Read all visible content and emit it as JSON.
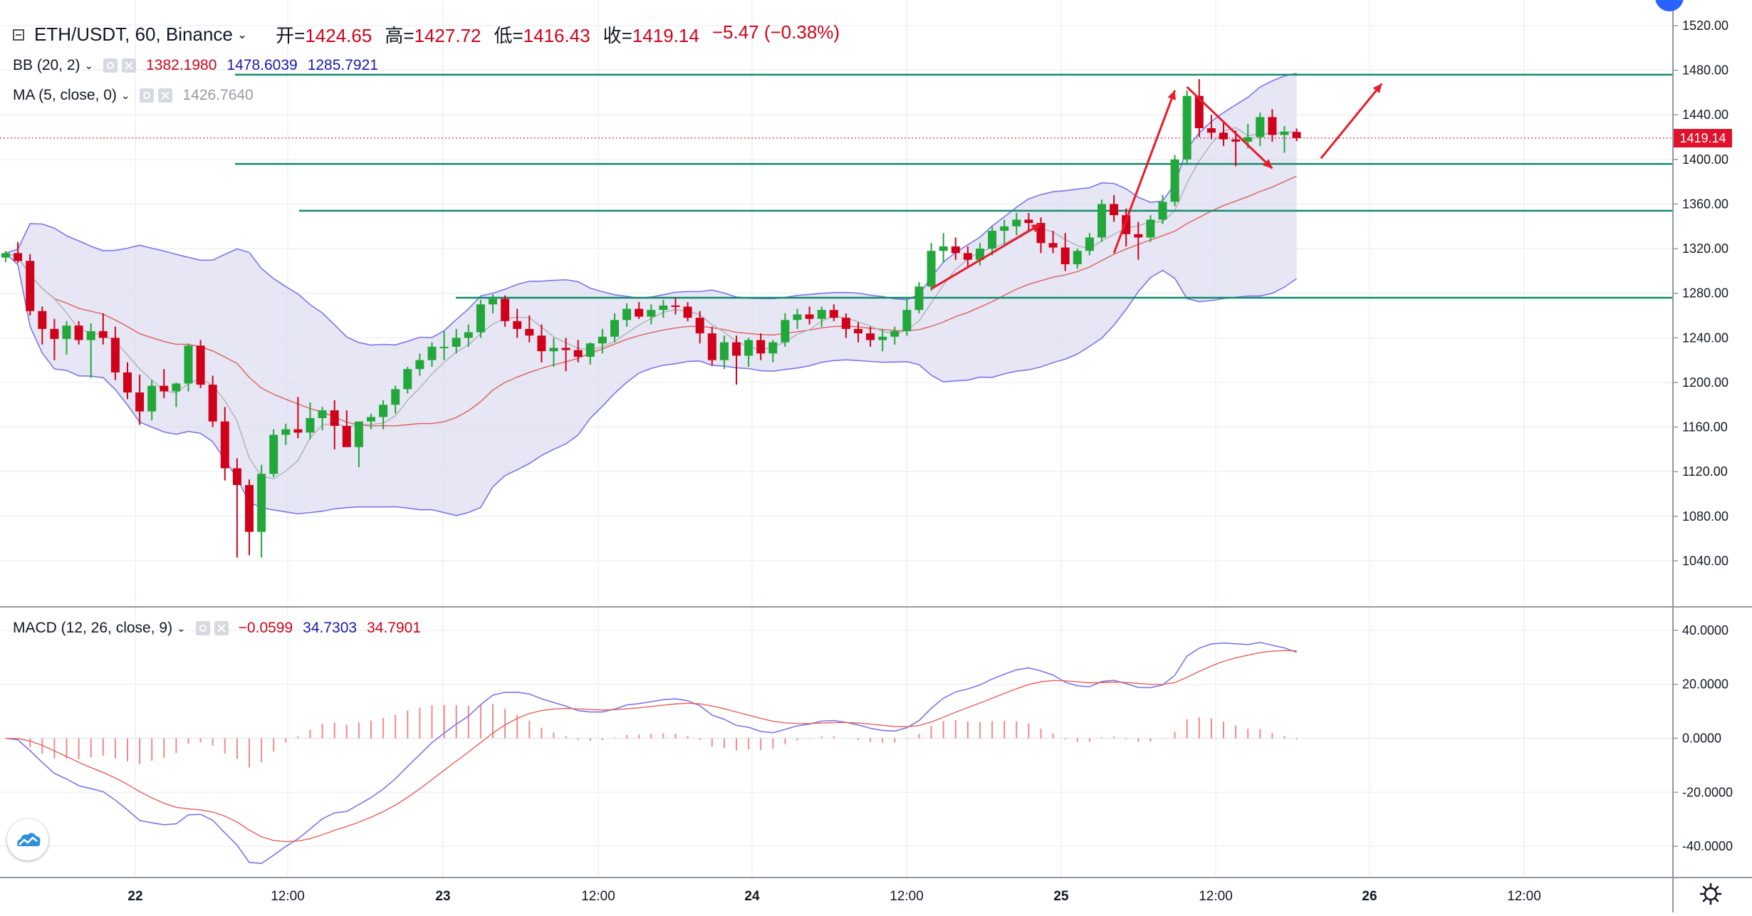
{
  "header": {
    "symbol": "ETH/USDT, 60, Binance",
    "ohlc": [
      {
        "label": "开=",
        "value": "1424.65"
      },
      {
        "label": "高=",
        "value": "1427.72"
      },
      {
        "label": "低=",
        "value": "1416.43"
      },
      {
        "label": "收=",
        "value": "1419.14"
      }
    ],
    "change": "−5.47 (−0.38%)"
  },
  "indicators": {
    "bb": {
      "name": "BB (20, 2)",
      "basis": "1382.1980",
      "upper": "1478.6039",
      "lower": "1285.7921"
    },
    "ma": {
      "name": "MA (5, close, 0)",
      "value": "1426.7640"
    },
    "macd": {
      "name": "MACD (12, 26, close, 9)",
      "hist": "−0.0599",
      "macd": "34.7303",
      "signal": "34.7901"
    }
  },
  "last_price_badge": "1419.14",
  "colors": {
    "up": "#22a83a",
    "down": "#d0021b",
    "bb_band": "#7b76e8",
    "bb_fill": "#dcdcf0",
    "ma": "#b0b0b8",
    "basis": "#e0605a",
    "hline": "#128a6c",
    "arrow": "#e81c28"
  },
  "chart_data": {
    "type": "candlestick",
    "price_axis": {
      "min": 1000,
      "max": 1520,
      "ticks": [
        "1040.00",
        "1080.00",
        "1120.00",
        "1160.00",
        "1200.00",
        "1240.00",
        "1280.00",
        "1320.00",
        "1360.00",
        "1400.00",
        "1440.00",
        "1480.00",
        "1520.00"
      ]
    },
    "macd_axis": {
      "min": -50,
      "max": 45,
      "ticks": [
        "-40.0000",
        "-20.0000",
        "0.0000",
        "20.0000",
        "40.0000"
      ]
    },
    "time_axis": [
      "22",
      "12:00",
      "23",
      "12:00",
      "24",
      "12:00",
      "25",
      "12:00",
      "26",
      "12:00"
    ],
    "candles": [
      [
        1312,
        1318,
        1308,
        1316
      ],
      [
        1316,
        1326,
        1307,
        1309
      ],
      [
        1309,
        1315,
        1260,
        1264
      ],
      [
        1264,
        1268,
        1234,
        1248
      ],
      [
        1248,
        1257,
        1220,
        1239
      ],
      [
        1239,
        1255,
        1225,
        1251
      ],
      [
        1251,
        1255,
        1234,
        1238
      ],
      [
        1238,
        1253,
        1204,
        1246
      ],
      [
        1246,
        1262,
        1234,
        1240
      ],
      [
        1240,
        1250,
        1202,
        1209
      ],
      [
        1209,
        1218,
        1185,
        1191
      ],
      [
        1191,
        1207,
        1162,
        1174
      ],
      [
        1174,
        1202,
        1166,
        1197
      ],
      [
        1197,
        1212,
        1186,
        1192
      ],
      [
        1192,
        1200,
        1178,
        1199
      ],
      [
        1199,
        1235,
        1192,
        1233
      ],
      [
        1233,
        1238,
        1195,
        1198
      ],
      [
        1198,
        1206,
        1160,
        1165
      ],
      [
        1165,
        1178,
        1112,
        1123
      ],
      [
        1123,
        1132,
        1043,
        1108
      ],
      [
        1108,
        1113,
        1045,
        1066
      ],
      [
        1066,
        1126,
        1043,
        1118
      ],
      [
        1118,
        1158,
        1115,
        1153
      ],
      [
        1153,
        1163,
        1144,
        1158
      ],
      [
        1158,
        1187,
        1150,
        1155
      ],
      [
        1155,
        1182,
        1149,
        1168
      ],
      [
        1168,
        1178,
        1157,
        1175
      ],
      [
        1175,
        1184,
        1140,
        1161
      ],
      [
        1161,
        1175,
        1143,
        1142
      ],
      [
        1142,
        1165,
        1124,
        1165
      ],
      [
        1165,
        1172,
        1158,
        1169
      ],
      [
        1169,
        1184,
        1158,
        1180
      ],
      [
        1180,
        1197,
        1172,
        1194
      ],
      [
        1194,
        1214,
        1190,
        1212
      ],
      [
        1212,
        1226,
        1206,
        1220
      ],
      [
        1220,
        1236,
        1214,
        1232
      ],
      [
        1232,
        1246,
        1220,
        1232
      ],
      [
        1232,
        1248,
        1226,
        1240
      ],
      [
        1240,
        1252,
        1232,
        1245
      ],
      [
        1245,
        1274,
        1240,
        1270
      ],
      [
        1270,
        1279,
        1262,
        1275
      ],
      [
        1275,
        1278,
        1250,
        1255
      ],
      [
        1255,
        1266,
        1240,
        1248
      ],
      [
        1248,
        1260,
        1236,
        1242
      ],
      [
        1242,
        1252,
        1218,
        1228
      ],
      [
        1228,
        1240,
        1214,
        1231
      ],
      [
        1231,
        1240,
        1210,
        1229
      ],
      [
        1229,
        1238,
        1218,
        1223
      ],
      [
        1223,
        1236,
        1216,
        1235
      ],
      [
        1235,
        1248,
        1226,
        1241
      ],
      [
        1241,
        1262,
        1236,
        1256
      ],
      [
        1256,
        1271,
        1250,
        1266
      ],
      [
        1266,
        1272,
        1257,
        1259
      ],
      [
        1259,
        1270,
        1252,
        1265
      ],
      [
        1265,
        1274,
        1258,
        1269
      ],
      [
        1269,
        1276,
        1261,
        1268
      ],
      [
        1268,
        1272,
        1255,
        1258
      ],
      [
        1258,
        1264,
        1235,
        1244
      ],
      [
        1244,
        1250,
        1215,
        1220
      ],
      [
        1220,
        1242,
        1212,
        1236
      ],
      [
        1236,
        1242,
        1198,
        1224
      ],
      [
        1224,
        1240,
        1214,
        1238
      ],
      [
        1238,
        1244,
        1220,
        1226
      ],
      [
        1226,
        1238,
        1218,
        1236
      ],
      [
        1236,
        1262,
        1232,
        1256
      ],
      [
        1256,
        1266,
        1248,
        1261
      ],
      [
        1261,
        1268,
        1252,
        1257
      ],
      [
        1257,
        1268,
        1250,
        1265
      ],
      [
        1265,
        1270,
        1255,
        1258
      ],
      [
        1258,
        1262,
        1240,
        1248
      ],
      [
        1248,
        1254,
        1236,
        1244
      ],
      [
        1244,
        1250,
        1232,
        1238
      ],
      [
        1238,
        1248,
        1228,
        1241
      ],
      [
        1241,
        1250,
        1234,
        1246
      ],
      [
        1246,
        1275,
        1242,
        1265
      ],
      [
        1265,
        1290,
        1262,
        1286
      ],
      [
        1286,
        1325,
        1282,
        1318
      ],
      [
        1318,
        1334,
        1308,
        1322
      ],
      [
        1322,
        1330,
        1310,
        1316
      ],
      [
        1316,
        1322,
        1303,
        1310
      ],
      [
        1310,
        1325,
        1305,
        1320
      ],
      [
        1320,
        1340,
        1314,
        1336
      ],
      [
        1336,
        1346,
        1324,
        1340
      ],
      [
        1340,
        1352,
        1332,
        1346
      ],
      [
        1346,
        1352,
        1336,
        1343
      ],
      [
        1343,
        1348,
        1316,
        1325
      ],
      [
        1325,
        1336,
        1316,
        1321
      ],
      [
        1321,
        1334,
        1300,
        1306
      ],
      [
        1306,
        1320,
        1302,
        1318
      ],
      [
        1318,
        1334,
        1314,
        1330
      ],
      [
        1330,
        1364,
        1326,
        1360
      ],
      [
        1360,
        1368,
        1344,
        1350
      ],
      [
        1350,
        1356,
        1322,
        1333
      ],
      [
        1333,
        1344,
        1310,
        1330
      ],
      [
        1330,
        1350,
        1326,
        1346
      ],
      [
        1346,
        1368,
        1342,
        1362
      ],
      [
        1362,
        1404,
        1358,
        1400
      ],
      [
        1400,
        1462,
        1396,
        1457
      ],
      [
        1457,
        1472,
        1420,
        1428
      ],
      [
        1428,
        1440,
        1418,
        1424
      ],
      [
        1424,
        1434,
        1412,
        1418
      ],
      [
        1418,
        1426,
        1394,
        1416
      ],
      [
        1416,
        1432,
        1410,
        1420
      ],
      [
        1420,
        1442,
        1412,
        1438
      ],
      [
        1438,
        1445,
        1416,
        1422
      ],
      [
        1422,
        1430,
        1406,
        1425
      ],
      [
        1424.65,
        1427.72,
        1416.43,
        1419.14
      ]
    ],
    "horizontal_lines": [
      1476,
      1396,
      1354,
      1276
    ]
  }
}
